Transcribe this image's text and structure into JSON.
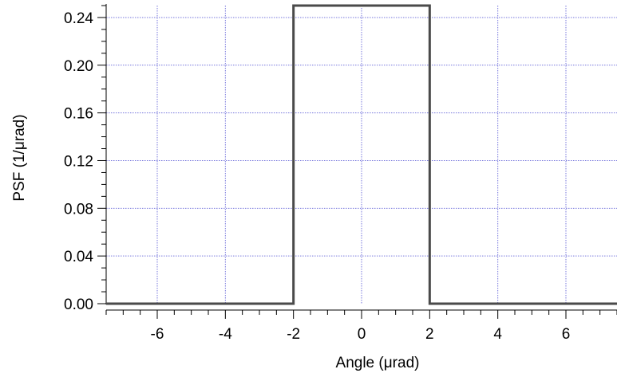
{
  "chart_data": {
    "type": "line",
    "xlabel": "Angle (μrad)",
    "ylabel": "PSF (1/μrad)",
    "xlim": [
      -7.5,
      7.5
    ],
    "ylim": [
      0,
      0.25
    ],
    "grid": true,
    "xticks": [
      -6,
      -4,
      -2,
      0,
      2,
      4,
      6
    ],
    "xtick_labels": [
      "-6",
      "-4",
      "-2",
      "0",
      "2",
      "4",
      "6"
    ],
    "yticks": [
      0,
      0.04,
      0.08,
      0.12,
      0.16,
      0.2,
      0.24
    ],
    "ytick_labels": [
      "0.00",
      "0.04",
      "0.08",
      "0.12",
      "0.16",
      "0.20",
      "0.24"
    ],
    "series": [
      {
        "color": "#4a4a4a",
        "x": [
          -7.5,
          -2,
          -2,
          2,
          2,
          7.5
        ],
        "y": [
          0,
          0,
          0.25,
          0.25,
          0,
          0
        ]
      }
    ],
    "grid_color": "#7777dd"
  }
}
